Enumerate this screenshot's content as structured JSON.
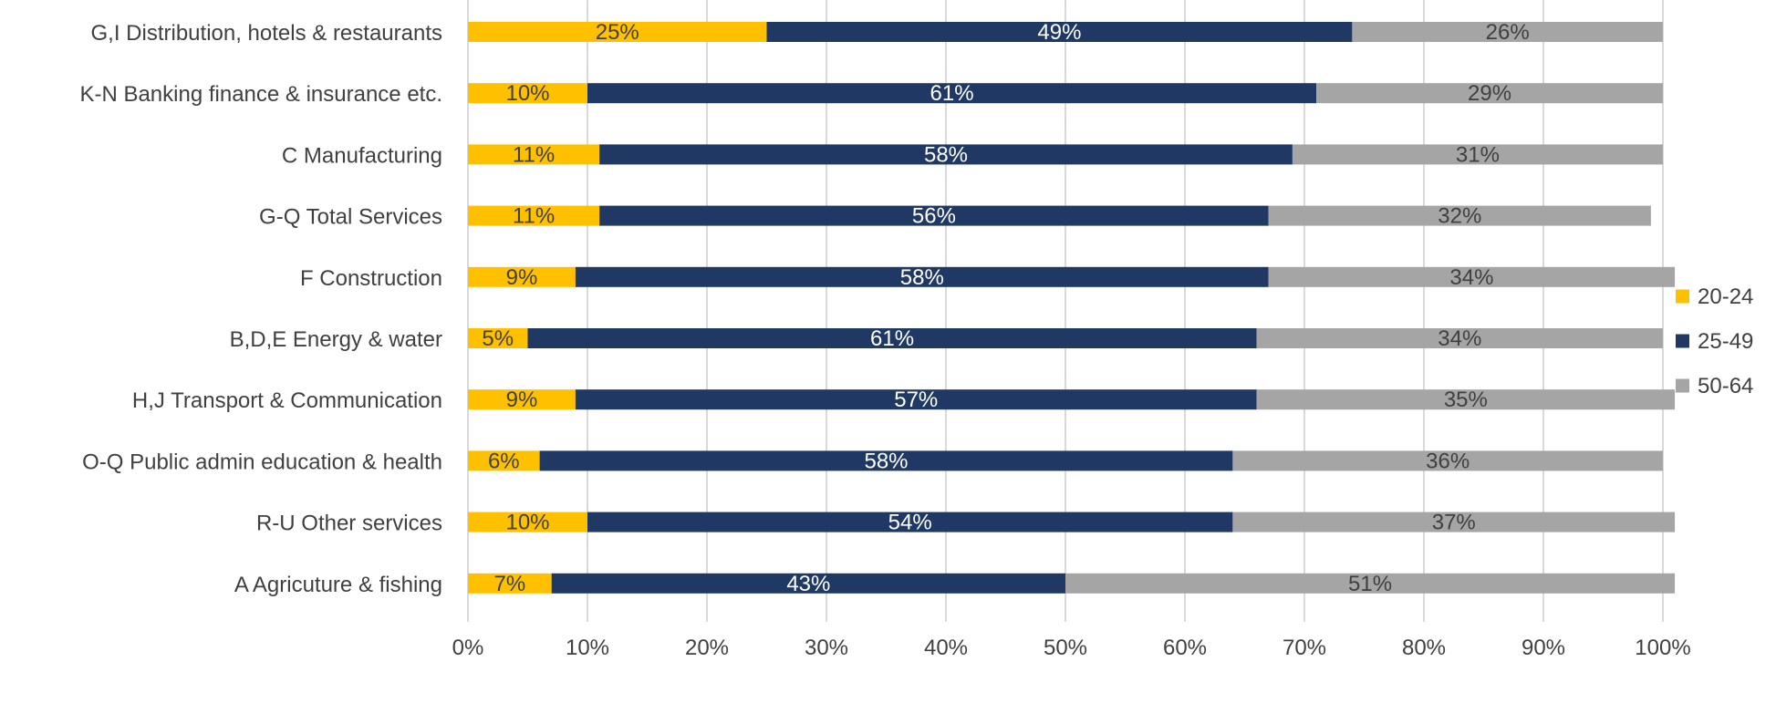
{
  "chart_data": {
    "type": "bar",
    "orientation": "horizontal",
    "stacked": "percent",
    "categories": [
      "G,I Distribution, hotels & restaurants",
      "K-N Banking finance & insurance etc.",
      "C Manufacturing",
      "G-Q Total Services",
      "F Construction",
      "B,D,E Energy & water",
      "H,J Transport & Communication",
      "O-Q Public admin education & health",
      "R-U Other services",
      "A Agricuture & fishing"
    ],
    "series": [
      {
        "name": "20-24",
        "color": "#FFC000",
        "values": [
          25,
          10,
          11,
          11,
          9,
          5,
          9,
          6,
          10,
          7
        ],
        "labels": [
          "25%",
          "10%",
          "11%",
          "11%",
          "9%",
          "5%",
          "9%",
          "6%",
          "10%",
          "7%"
        ],
        "label_color": "#404040"
      },
      {
        "name": "25-49",
        "color": "#1F3864",
        "values": [
          49,
          61,
          58,
          56,
          58,
          61,
          57,
          58,
          54,
          43
        ],
        "labels": [
          "49%",
          "61%",
          "58%",
          "56%",
          "58%",
          "61%",
          "57%",
          "58%",
          "54%",
          "43%"
        ],
        "label_color": "#FFFFFF"
      },
      {
        "name": "50-64",
        "color": "#A5A5A5",
        "values": [
          26,
          29,
          31,
          32,
          34,
          34,
          35,
          36,
          37,
          51
        ],
        "labels": [
          "26%",
          "29%",
          "31%",
          "32%",
          "34%",
          "34%",
          "35%",
          "36%",
          "37%",
          "51%"
        ],
        "label_color": "#404040"
      }
    ],
    "x_ticks": [
      "0%",
      "10%",
      "20%",
      "30%",
      "40%",
      "50%",
      "60%",
      "70%",
      "80%",
      "90%",
      "100%"
    ],
    "xlim": [
      0,
      100
    ],
    "grid": true,
    "legend": "right",
    "title": "",
    "xlabel": "",
    "ylabel": ""
  }
}
